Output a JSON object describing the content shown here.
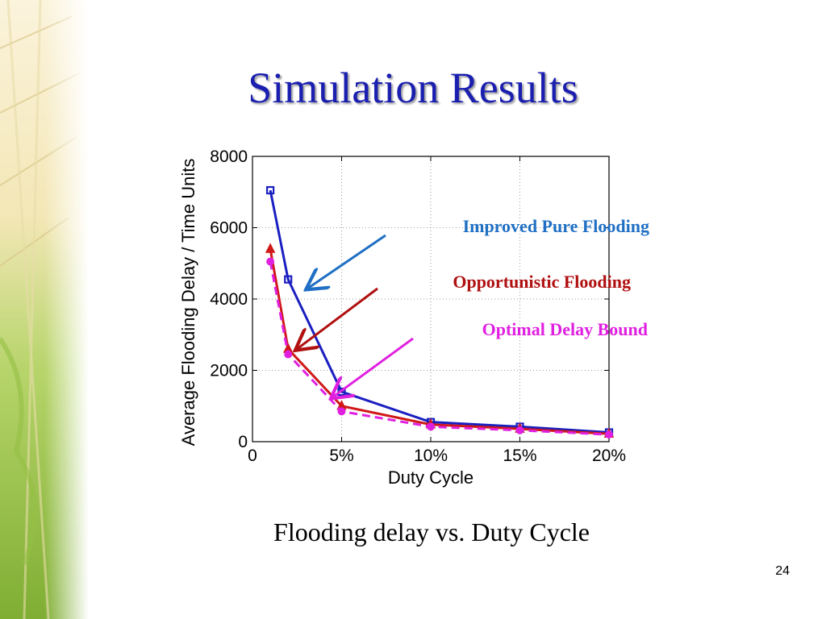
{
  "slide": {
    "title": "Simulation Results",
    "caption": "Flooding delay vs. Duty Cycle",
    "page_number": "24"
  },
  "chart_data": {
    "type": "line",
    "title": "",
    "xlabel": "Duty Cycle",
    "ylabel": "Average Flooding Delay / Time Units",
    "xlim": [
      0,
      0.2
    ],
    "ylim": [
      0,
      8000
    ],
    "x_ticks": [
      0,
      0.05,
      0.1,
      0.15,
      0.2
    ],
    "x_tick_labels": [
      "0",
      "5%",
      "10%",
      "15%",
      "20%"
    ],
    "y_ticks": [
      0,
      2000,
      4000,
      6000,
      8000
    ],
    "y_tick_labels": [
      "0",
      "2000",
      "4000",
      "6000",
      "8000"
    ],
    "grid": true,
    "series": [
      {
        "name": "Improved Pure Flooding",
        "color": "#1a1fc0",
        "marker": "square",
        "dashed": false,
        "x": [
          0.01,
          0.02,
          0.05,
          0.1,
          0.15,
          0.2
        ],
        "y": [
          7050,
          4550,
          1400,
          550,
          420,
          260
        ]
      },
      {
        "name": "Opportunistic Flooding",
        "color": "#d01818",
        "marker": "triangle",
        "dashed": false,
        "x": [
          0.01,
          0.02,
          0.05,
          0.1,
          0.15,
          0.2
        ],
        "y": [
          5400,
          2600,
          1000,
          480,
          360,
          220
        ]
      },
      {
        "name": "Optimal Delay Bound",
        "color": "#e020e0",
        "marker": "circle",
        "dashed": true,
        "x": [
          0.01,
          0.02,
          0.05,
          0.1,
          0.15,
          0.2
        ],
        "y": [
          5050,
          2450,
          850,
          420,
          320,
          200
        ]
      }
    ],
    "annotations": [
      {
        "text": "Improved Pure Flooding",
        "color": "#1f6fc4",
        "arrow_color": "#1f6fc4",
        "target_x": 0.031,
        "target_y": 4300
      },
      {
        "text": "Opportunistic Flooding",
        "color": "#b01010",
        "arrow_color": "#b01010",
        "target_x": 0.025,
        "target_y": 2600
      },
      {
        "text": "Optimal Delay Bound",
        "color": "#e020e0",
        "arrow_color": "#e020e0",
        "target_x": 0.045,
        "target_y": 1250
      }
    ]
  }
}
